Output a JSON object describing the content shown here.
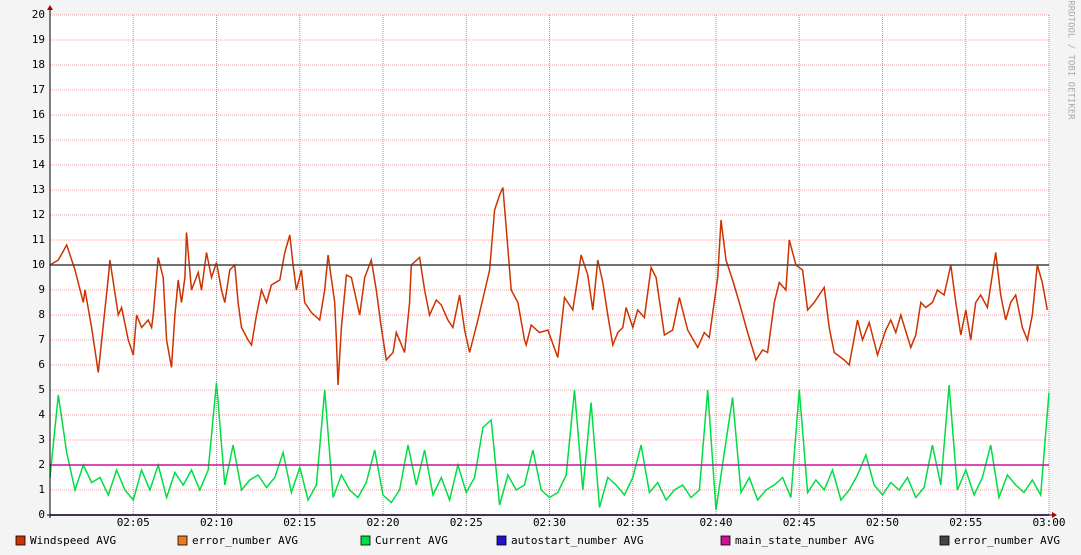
{
  "chart_data": {
    "type": "line",
    "watermark": "RRDTOOL / TOBI OETIKER",
    "xlim": [
      0,
      60
    ],
    "xticks": [
      {
        "value": 5,
        "label": "02:05"
      },
      {
        "value": 10,
        "label": "02:10"
      },
      {
        "value": 15,
        "label": "02:15"
      },
      {
        "value": 20,
        "label": "02:20"
      },
      {
        "value": 25,
        "label": "02:25"
      },
      {
        "value": 30,
        "label": "02:30"
      },
      {
        "value": 35,
        "label": "02:35"
      },
      {
        "value": 40,
        "label": "02:40"
      },
      {
        "value": 45,
        "label": "02:45"
      },
      {
        "value": 50,
        "label": "02:50"
      },
      {
        "value": 55,
        "label": "02:55"
      },
      {
        "value": 60,
        "label": "03:00"
      }
    ],
    "ylim": [
      0,
      20
    ],
    "yticks": [
      0,
      1,
      2,
      3,
      4,
      5,
      6,
      7,
      8,
      9,
      10,
      11,
      12,
      13,
      14,
      15,
      16,
      17,
      18,
      19,
      20
    ],
    "grid": true,
    "series": [
      {
        "name": "Windspeed AVG",
        "color": "#cc3300",
        "x": [
          0,
          0.5,
          1.0,
          1.5,
          2.0,
          2.1,
          2.5,
          2.9,
          3.5,
          3.6,
          4.1,
          4.3,
          4.7,
          5.0,
          5.2,
          5.5,
          5.9,
          6.1,
          6.2,
          6.5,
          6.8,
          7.0,
          7.3,
          7.5,
          7.7,
          7.9,
          8.1,
          8.2,
          8.5,
          8.9,
          9.1,
          9.4,
          9.7,
          10.0,
          10.3,
          10.5,
          10.8,
          11.1,
          11.3,
          11.5,
          11.9,
          12.1,
          12.4,
          12.7,
          13.0,
          13.3,
          13.8,
          14.1,
          14.4,
          14.6,
          14.8,
          15.1,
          15.3,
          15.7,
          16.2,
          16.5,
          16.7,
          17.1,
          17.2,
          17.3,
          17.5,
          17.8,
          18.1,
          18.6,
          18.9,
          19.3,
          19.6,
          19.9,
          20.2,
          20.6,
          20.8,
          21.3,
          21.6,
          21.7,
          22.2,
          22.5,
          22.8,
          23.2,
          23.5,
          23.9,
          24.2,
          24.6,
          24.9,
          25.2,
          25.7,
          26.4,
          26.7,
          27.0,
          27.2,
          27.4,
          27.7,
          28.1,
          28.5,
          28.6,
          28.9,
          29.4,
          29.9,
          30.5,
          30.9,
          31.4,
          31.7,
          31.9,
          32.3,
          32.6,
          32.9,
          33.2,
          33.5,
          33.8,
          34.1,
          34.4,
          34.6,
          35.0,
          35.3,
          35.7,
          36.1,
          36.4,
          36.9,
          37.4,
          37.8,
          38.3,
          38.9,
          39.3,
          39.6,
          40.1,
          40.3,
          40.6,
          41.0,
          41.4,
          41.9,
          42.4,
          42.8,
          43.1,
          43.5,
          43.8,
          44.2,
          44.4,
          44.8,
          45.2,
          45.5,
          45.9,
          46.5,
          46.8,
          47.1,
          47.7,
          48.0,
          48.5,
          48.8,
          49.2,
          49.7,
          50.2,
          50.5,
          50.8,
          51.1,
          51.7,
          52.0,
          52.3,
          52.6,
          53.0,
          53.3,
          53.7,
          54.1,
          54.4,
          54.7,
          55.0,
          55.3,
          55.6,
          55.9,
          56.3,
          56.8,
          57.1,
          57.4,
          57.7,
          58.0,
          58.4,
          58.7,
          59.0,
          59.3,
          59.6,
          59.9
        ],
        "values": [
          10.0,
          10.2,
          10.8,
          9.8,
          8.5,
          9.0,
          7.5,
          5.7,
          9.5,
          10.2,
          8.0,
          8.3,
          7.0,
          6.4,
          8.0,
          7.5,
          7.8,
          7.5,
          8.0,
          10.3,
          9.5,
          7.0,
          5.9,
          8.0,
          9.4,
          8.5,
          9.5,
          11.3,
          9.0,
          9.7,
          9.0,
          10.5,
          9.5,
          10.1,
          9.0,
          8.5,
          9.8,
          10.0,
          8.5,
          7.5,
          7.0,
          6.8,
          8.0,
          9.0,
          8.5,
          9.2,
          9.4,
          10.5,
          11.2,
          10.0,
          9.0,
          9.8,
          8.5,
          8.1,
          7.8,
          9.0,
          10.4,
          8.5,
          7.0,
          5.2,
          7.5,
          9.6,
          9.5,
          8.0,
          9.5,
          10.2,
          9.0,
          7.5,
          6.2,
          6.5,
          7.3,
          6.5,
          8.5,
          10.0,
          10.3,
          9.0,
          8.0,
          8.6,
          8.4,
          7.8,
          7.5,
          8.8,
          7.4,
          6.5,
          7.8,
          9.8,
          12.2,
          12.8,
          13.1,
          11.5,
          9.0,
          8.5,
          7.0,
          6.8,
          7.6,
          7.3,
          7.4,
          6.3,
          8.7,
          8.2,
          9.5,
          10.4,
          9.6,
          8.2,
          10.2,
          9.3,
          8.0,
          6.8,
          7.3,
          7.5,
          8.3,
          7.5,
          8.2,
          7.9,
          9.9,
          9.5,
          7.2,
          7.4,
          8.7,
          7.4,
          6.7,
          7.3,
          7.1,
          9.5,
          11.8,
          10.2,
          9.4,
          8.5,
          7.3,
          6.2,
          6.6,
          6.5,
          8.5,
          9.3,
          9.0,
          11.0,
          10.0,
          9.8,
          8.2,
          8.5,
          9.1,
          7.5,
          6.5,
          6.2,
          6.0,
          7.8,
          7.0,
          7.7,
          6.4,
          7.4,
          7.8,
          7.3,
          8.0,
          6.7,
          7.2,
          8.5,
          8.3,
          8.5,
          9.0,
          8.8,
          10.0,
          8.5,
          7.2,
          8.2,
          7.0,
          8.5,
          8.8,
          8.3,
          10.5,
          8.8,
          7.8,
          8.5,
          8.8,
          7.5,
          7.0,
          8.0,
          10.0,
          9.3,
          8.2
        ]
      },
      {
        "name": "error_number AVG",
        "color": "#ee7722",
        "x": [
          0,
          60
        ],
        "values": [
          0,
          0
        ]
      },
      {
        "name": "Current AVG",
        "color": "#00dd44",
        "x": [
          0,
          0.5,
          1,
          1.5,
          2,
          2.5,
          3,
          3.5,
          4,
          4.5,
          5,
          5.5,
          6,
          6.5,
          7,
          7.5,
          8,
          8.5,
          9,
          9.5,
          10,
          10.5,
          11,
          11.5,
          12,
          12.5,
          13,
          13.5,
          14,
          14.5,
          15,
          15.5,
          16,
          16.5,
          17,
          17.5,
          18,
          18.5,
          19,
          19.5,
          20,
          20.5,
          21,
          21.5,
          22,
          22.5,
          23,
          23.5,
          24,
          24.5,
          25,
          25.5,
          26,
          26.5,
          27,
          27.5,
          28,
          28.5,
          29,
          29.5,
          30,
          30.5,
          31,
          31.5,
          32,
          32.5,
          33,
          33.5,
          34,
          34.5,
          35,
          35.5,
          36,
          36.5,
          37,
          37.5,
          38,
          38.5,
          39,
          39.5,
          40,
          40.5,
          41,
          41.5,
          42,
          42.5,
          43,
          43.5,
          44,
          44.5,
          45,
          45.5,
          46,
          46.5,
          47,
          47.5,
          48,
          48.5,
          49,
          49.5,
          50,
          50.5,
          51,
          51.5,
          52,
          52.5,
          53,
          53.5,
          54,
          54.5,
          55,
          55.5,
          56,
          56.5,
          57,
          57.5,
          58,
          58.5,
          59,
          59.5,
          60
        ],
        "values": [
          1.5,
          4.8,
          2.5,
          1.0,
          2.0,
          1.3,
          1.5,
          0.8,
          1.8,
          1.0,
          0.6,
          1.8,
          1.0,
          2.0,
          0.7,
          1.7,
          1.2,
          1.8,
          1.0,
          1.8,
          5.3,
          1.2,
          2.8,
          1.0,
          1.4,
          1.6,
          1.1,
          1.5,
          2.5,
          0.9,
          1.9,
          0.6,
          1.2,
          5.0,
          0.7,
          1.6,
          1.0,
          0.7,
          1.3,
          2.6,
          0.8,
          0.5,
          1.0,
          2.8,
          1.2,
          2.6,
          0.8,
          1.5,
          0.6,
          2.0,
          0.9,
          1.5,
          3.5,
          3.8,
          0.4,
          1.6,
          1.0,
          1.2,
          2.6,
          1.0,
          0.7,
          0.9,
          1.6,
          5.0,
          1.0,
          4.5,
          0.3,
          1.5,
          1.2,
          0.8,
          1.5,
          2.8,
          0.9,
          1.3,
          0.6,
          1.0,
          1.2,
          0.7,
          1.0,
          5.0,
          0.2,
          2.5,
          4.7,
          0.9,
          1.5,
          0.6,
          1.0,
          1.2,
          1.5,
          0.7,
          5.0,
          0.9,
          1.4,
          1.0,
          1.8,
          0.6,
          1.0,
          1.6,
          2.4,
          1.2,
          0.8,
          1.3,
          1.0,
          1.5,
          0.7,
          1.1,
          2.8,
          1.2,
          5.2,
          1.0,
          1.8,
          0.8,
          1.5,
          2.8,
          0.7,
          1.6,
          1.2,
          0.9,
          1.4,
          0.8,
          4.9
        ]
      },
      {
        "name": "autostart_number AVG",
        "color": "#2211cc",
        "x": [
          0,
          60
        ],
        "values": [
          0,
          0
        ]
      },
      {
        "name": "main_state_number AVG",
        "color": "#cc1199",
        "x": [
          0,
          60
        ],
        "values": [
          2,
          2
        ]
      },
      {
        "name": "error_number AVG",
        "color": "#444444",
        "x": [
          0,
          60
        ],
        "values": [
          10,
          10
        ]
      }
    ]
  }
}
